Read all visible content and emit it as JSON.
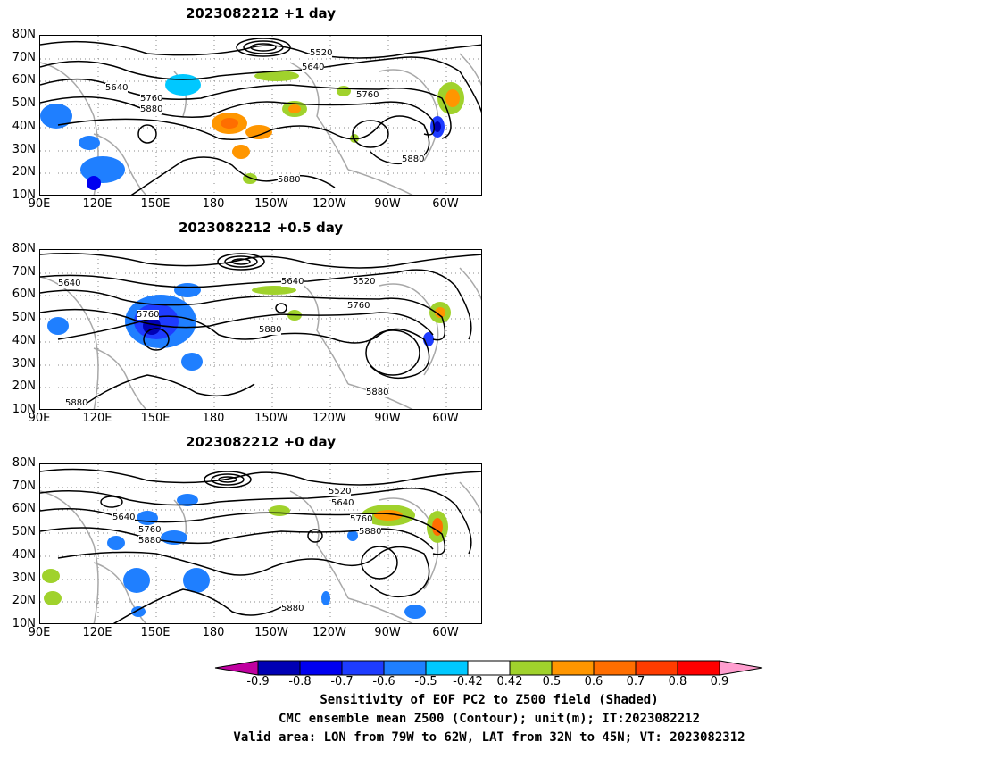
{
  "panels": [
    {
      "title": "2023082212  +1 day",
      "contour_labels": [
        "5520",
        "5640",
        "5640",
        "5760",
        "5760",
        "5880",
        "5880",
        "5880"
      ]
    },
    {
      "title": "2023082212  +0.5 day",
      "contour_labels": [
        "5640",
        "5640",
        "5520",
        "5760",
        "5760",
        "5880",
        "5880",
        "5880"
      ]
    },
    {
      "title": "2023082212  +0 day",
      "contour_labels": [
        "5520",
        "5640",
        "5640",
        "5760",
        "5760",
        "5880",
        "5880",
        "5880"
      ]
    }
  ],
  "lat_ticks": [
    "80N",
    "70N",
    "60N",
    "50N",
    "40N",
    "30N",
    "20N",
    "10N"
  ],
  "lon_ticks": [
    "90E",
    "120E",
    "150E",
    "180",
    "150W",
    "120W",
    "90W",
    "60W"
  ],
  "colorbar": {
    "labels": [
      "-0.9",
      "-0.8",
      "-0.7",
      "-0.6",
      "-0.5",
      "-0.42",
      "0.42",
      "0.5",
      "0.6",
      "0.7",
      "0.8",
      "0.9"
    ],
    "colors": [
      "#0000b4",
      "#0000f0",
      "#1e3cff",
      "#1f7fff",
      "#00c8ff",
      "#ffffff",
      "#a0d22c",
      "#ff9600",
      "#ff6e00",
      "#ff3c00",
      "#ff0000"
    ],
    "left_arrow_color": "#c000a0",
    "right_arrow_color": "#ff9ecf"
  },
  "caption": {
    "line1": "Sensitivity of EOF PC2 to Z500 field (Shaded)",
    "line2": "CMC ensemble mean Z500 (Contour); unit(m); IT:2023082212",
    "line3": "Valid area: LON from 79W to 62W, LAT from 32N to 45N; VT: 2023082312"
  }
}
